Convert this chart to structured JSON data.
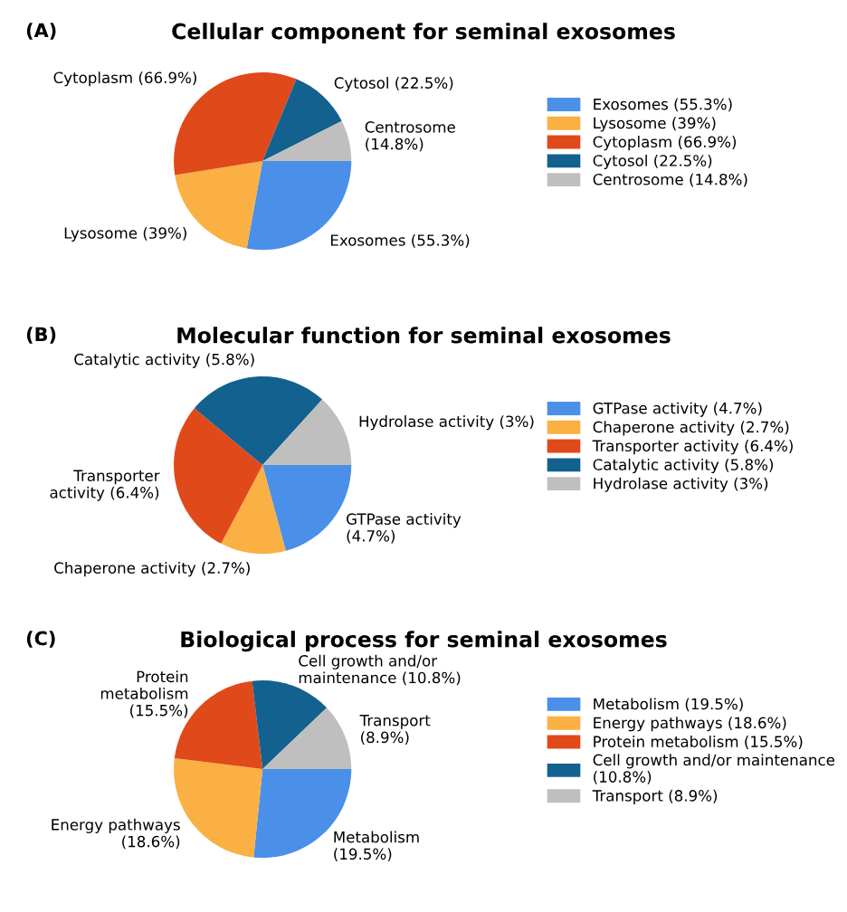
{
  "chart_data": [
    {
      "type": "pie",
      "title": "Cellular component for seminal exosomes",
      "annotations": [
        "(A)"
      ],
      "legend": "right",
      "categories": [
        "Exosomes (55.3%)",
        "Lysosome (39%)",
        "Cytoplasm (66.9%)",
        "Cytosol (22.5%)",
        "Centrosome (14.8%)"
      ],
      "value_labels": [
        "Exosomes (55.3%)",
        "Lysosome (39%)",
        "Cytoplasm (66.9%)",
        "Cytosol (22.5%)",
        "Centrosome\n(14.8%)"
      ],
      "values": [
        55.3,
        39,
        66.9,
        22.5,
        14.8
      ],
      "colors": [
        "#4a8fe8",
        "#fab043",
        "#e0491a",
        "#13618f",
        "#bfbfbf"
      ]
    },
    {
      "type": "pie",
      "title": "Molecular function for seminal exosomes",
      "annotations": [
        "(B)"
      ],
      "legend": "right",
      "categories": [
        "GTPase activity (4.7%)",
        "Chaperone activity (2.7%)",
        "Transporter activity (6.4%)",
        "Catalytic activity (5.8%)",
        "Hydrolase activity (3%)"
      ],
      "value_labels": [
        "GTPase activity\n(4.7%)",
        "Chaperone activity (2.7%)",
        "Transporter\nactivity (6.4%)",
        "Catalytic activity (5.8%)",
        "Hydrolase activity (3%)"
      ],
      "values": [
        4.7,
        2.7,
        6.4,
        5.8,
        3
      ],
      "colors": [
        "#4a8fe8",
        "#fab043",
        "#e0491a",
        "#13618f",
        "#bfbfbf"
      ]
    },
    {
      "type": "pie",
      "title": "Biological process for seminal exosomes",
      "annotations": [
        "(C)"
      ],
      "legend": "right",
      "categories": [
        "Metabolism (19.5%)",
        "Energy pathways (18.6%)",
        "Protein metabolism (15.5%)",
        "Cell growth and/or maintenance\n(10.8%)",
        "Transport (8.9%)"
      ],
      "value_labels": [
        "Metabolism\n(19.5%)",
        "Energy pathways\n(18.6%)",
        "Protein\nmetabolism\n(15.5%)",
        "Cell growth and/or\nmaintenance (10.8%)",
        "Transport\n(8.9%)"
      ],
      "values": [
        19.5,
        18.6,
        15.5,
        10.8,
        8.9
      ],
      "colors": [
        "#4a8fe8",
        "#fab043",
        "#e0491a",
        "#13618f",
        "#bfbfbf"
      ]
    }
  ]
}
